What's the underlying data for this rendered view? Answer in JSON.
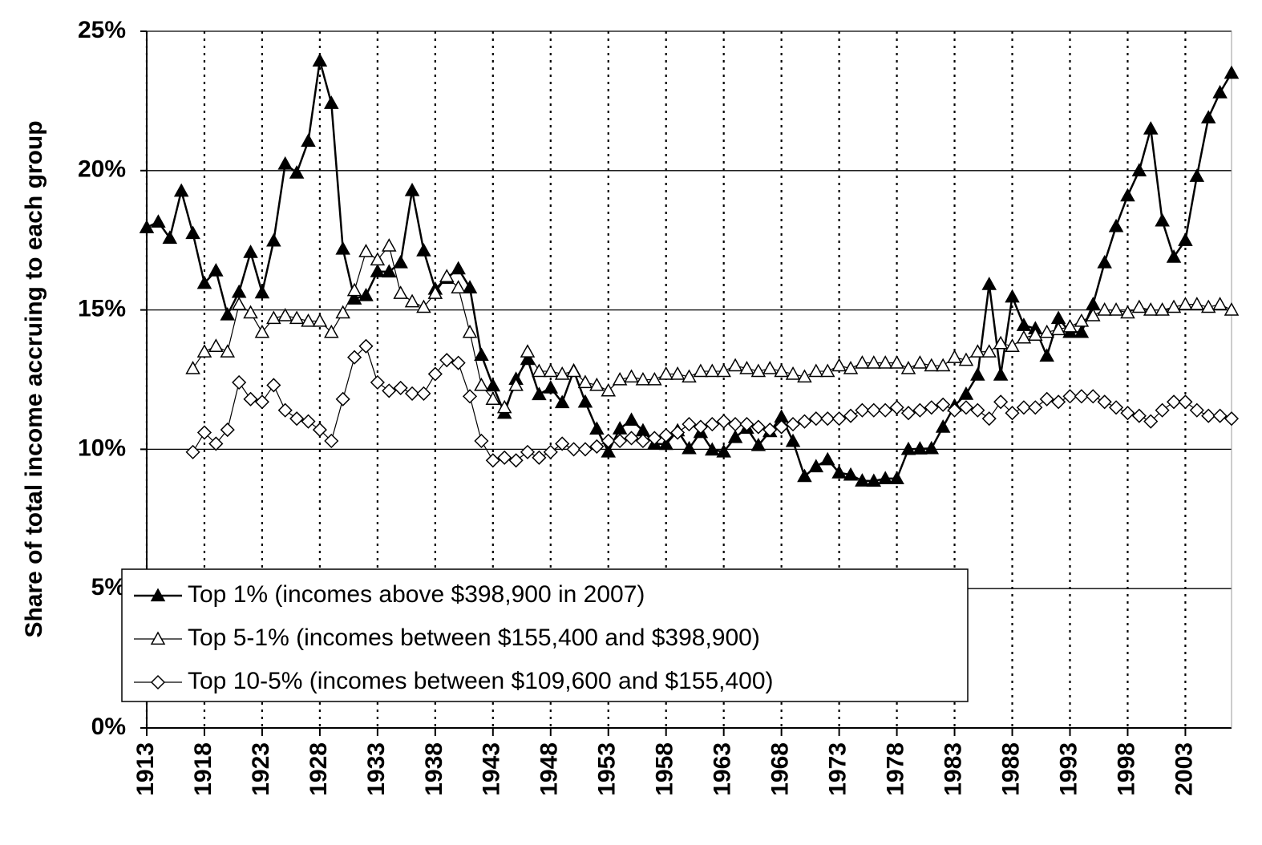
{
  "chart_data": {
    "type": "line",
    "y_label": "Share of total income accruing to each group",
    "x": [
      1913,
      1914,
      1915,
      1916,
      1917,
      1918,
      1919,
      1920,
      1921,
      1922,
      1923,
      1924,
      1925,
      1926,
      1927,
      1928,
      1929,
      1930,
      1931,
      1932,
      1933,
      1934,
      1935,
      1936,
      1937,
      1938,
      1939,
      1940,
      1941,
      1942,
      1943,
      1944,
      1945,
      1946,
      1947,
      1948,
      1949,
      1950,
      1951,
      1952,
      1953,
      1954,
      1955,
      1956,
      1957,
      1958,
      1959,
      1960,
      1961,
      1962,
      1963,
      1964,
      1965,
      1966,
      1967,
      1968,
      1969,
      1970,
      1971,
      1972,
      1973,
      1974,
      1975,
      1976,
      1977,
      1978,
      1979,
      1980,
      1981,
      1982,
      1983,
      1984,
      1985,
      1986,
      1987,
      1988,
      1989,
      1990,
      1991,
      1992,
      1993,
      1994,
      1995,
      1996,
      1997,
      1998,
      1999,
      2000,
      2001,
      2002,
      2003,
      2004,
      2005,
      2006,
      2007
    ],
    "series": [
      {
        "name": "Top 1% (incomes above $398,900 in 2007)",
        "color": "#000000",
        "marker": "triangle",
        "marker_fill": "#000000",
        "line_width": 2.5,
        "values": [
          17.96,
          18.16,
          17.58,
          19.27,
          17.75,
          15.96,
          16.41,
          14.83,
          15.64,
          17.07,
          15.62,
          17.48,
          20.24,
          19.92,
          21.06,
          23.94,
          22.42,
          17.19,
          15.4,
          15.52,
          16.38,
          16.37,
          16.7,
          19.29,
          17.13,
          15.75,
          16.14,
          16.48,
          15.8,
          13.38,
          12.28,
          11.3,
          12.52,
          13.23,
          11.97,
          12.21,
          11.68,
          12.82,
          11.7,
          10.73,
          9.91,
          10.74,
          11.05,
          10.67,
          10.2,
          10.18,
          10.67,
          10.03,
          10.61,
          9.98,
          9.91,
          10.43,
          10.76,
          10.14,
          10.64,
          11.16,
          10.29,
          9.03,
          9.38,
          9.63,
          9.16,
          9.08,
          8.87,
          8.86,
          8.95,
          8.95,
          10.0,
          10.02,
          10.03,
          10.8,
          11.56,
          11.98,
          12.67,
          15.92,
          12.67,
          15.47,
          14.45,
          14.33,
          13.35,
          14.7,
          14.2,
          14.2,
          15.2,
          16.7,
          18.0,
          19.1,
          20.0,
          21.5,
          18.2,
          16.9,
          17.5,
          19.8,
          21.9,
          22.8,
          23.5
        ]
      },
      {
        "name": "Top 5-1% (incomes between $155,400 and $398,900)",
        "color": "#000000",
        "marker": "triangle",
        "marker_fill": "#ffffff",
        "line_width": 1.2,
        "values": [
          null,
          null,
          null,
          null,
          12.9,
          13.5,
          13.7,
          13.5,
          15.2,
          14.9,
          14.2,
          14.7,
          14.8,
          14.7,
          14.6,
          14.6,
          14.2,
          14.9,
          15.7,
          17.1,
          16.8,
          17.3,
          15.6,
          15.3,
          15.1,
          15.6,
          16.2,
          15.8,
          14.2,
          12.3,
          11.8,
          11.5,
          12.3,
          13.5,
          12.8,
          12.8,
          12.7,
          12.8,
          12.4,
          12.3,
          12.1,
          12.5,
          12.6,
          12.5,
          12.5,
          12.7,
          12.7,
          12.6,
          12.8,
          12.8,
          12.8,
          13.0,
          12.9,
          12.8,
          12.9,
          12.8,
          12.7,
          12.6,
          12.8,
          12.8,
          13.0,
          12.9,
          13.1,
          13.1,
          13.1,
          13.1,
          12.9,
          13.1,
          13.0,
          13.0,
          13.3,
          13.2,
          13.5,
          13.5,
          13.8,
          13.7,
          14.0,
          14.1,
          14.2,
          14.3,
          14.4,
          14.6,
          14.8,
          15.0,
          15.0,
          14.9,
          15.1,
          15.0,
          15.0,
          15.1,
          15.2,
          15.2,
          15.1,
          15.2,
          15.0
        ]
      },
      {
        "name": "Top 10-5% (incomes between $109,600 and $155,400)",
        "color": "#000000",
        "marker": "diamond",
        "marker_fill": "#ffffff",
        "line_width": 1.2,
        "values": [
          null,
          null,
          null,
          null,
          9.9,
          10.6,
          10.2,
          10.7,
          12.4,
          11.8,
          11.7,
          12.3,
          11.4,
          11.1,
          11.0,
          10.7,
          10.3,
          11.8,
          13.3,
          13.7,
          12.4,
          12.1,
          12.2,
          12.0,
          12.0,
          12.7,
          13.2,
          13.1,
          11.9,
          10.3,
          9.6,
          9.7,
          9.6,
          9.9,
          9.7,
          9.9,
          10.2,
          10.0,
          10.0,
          10.1,
          10.3,
          10.3,
          10.4,
          10.3,
          10.4,
          10.5,
          10.6,
          10.9,
          10.8,
          10.9,
          11.0,
          10.9,
          10.9,
          10.8,
          10.7,
          10.8,
          10.9,
          11.0,
          11.1,
          11.1,
          11.1,
          11.2,
          11.4,
          11.4,
          11.4,
          11.5,
          11.3,
          11.4,
          11.5,
          11.6,
          11.4,
          11.5,
          11.4,
          11.1,
          11.7,
          11.3,
          11.5,
          11.5,
          11.8,
          11.7,
          11.9,
          11.9,
          11.9,
          11.7,
          11.5,
          11.3,
          11.2,
          11.0,
          11.4,
          11.7,
          11.7,
          11.4,
          11.2,
          11.2,
          11.1
        ]
      }
    ],
    "xlim": [
      1913,
      2007
    ],
    "xticks": [
      1913,
      1918,
      1923,
      1928,
      1933,
      1938,
      1943,
      1948,
      1953,
      1958,
      1963,
      1968,
      1973,
      1978,
      1983,
      1988,
      1993,
      1998,
      2003
    ],
    "ylim": [
      0,
      25
    ],
    "yticks": [
      {
        "value": 0,
        "label": "0%"
      },
      {
        "value": 5,
        "label": "5%"
      },
      {
        "value": 10,
        "label": "10%"
      },
      {
        "value": 15,
        "label": "15%"
      },
      {
        "value": 20,
        "label": "20%"
      },
      {
        "value": 25,
        "label": "25%"
      }
    ],
    "grid": true,
    "legend": "bottom-center"
  }
}
